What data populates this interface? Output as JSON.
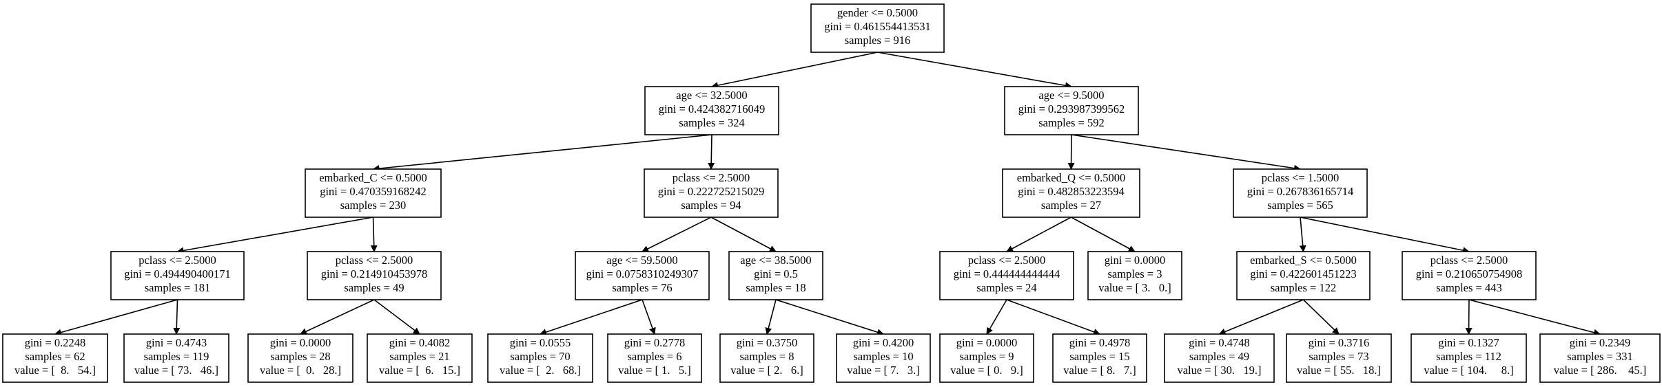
{
  "nodes": {
    "n0": {
      "lines": [
        "gender <= 0.5000",
        "gini = 0.461554413531",
        "samples = 916"
      ]
    },
    "n1": {
      "lines": [
        "age <= 32.5000",
        "gini = 0.424382716049",
        "samples = 324"
      ]
    },
    "n2": {
      "lines": [
        "age <= 9.5000",
        "gini = 0.293987399562",
        "samples = 592"
      ]
    },
    "n3": {
      "lines": [
        "embarked_C <= 0.5000",
        "gini = 0.470359168242",
        "samples = 230"
      ]
    },
    "n4": {
      "lines": [
        "pclass <= 2.5000",
        "gini = 0.222725215029",
        "samples = 94"
      ]
    },
    "n5": {
      "lines": [
        "embarked_Q <= 0.5000",
        "gini = 0.482853223594",
        "samples = 27"
      ]
    },
    "n6": {
      "lines": [
        "pclass <= 1.5000",
        "gini = 0.267836165714",
        "samples = 565"
      ]
    },
    "n7": {
      "lines": [
        "pclass <= 2.5000",
        "gini = 0.494490400171",
        "samples = 181"
      ]
    },
    "n8": {
      "lines": [
        "pclass <= 2.5000",
        "gini = 0.214910453978",
        "samples = 49"
      ]
    },
    "n9": {
      "lines": [
        "age <= 59.5000",
        "gini = 0.0758310249307",
        "samples = 76"
      ]
    },
    "n10": {
      "lines": [
        "age <= 38.5000",
        "gini = 0.5",
        "samples = 18"
      ]
    },
    "n11": {
      "lines": [
        "pclass <= 2.5000",
        "gini = 0.444444444444",
        "samples = 24"
      ]
    },
    "n12": {
      "lines": [
        "gini = 0.0000",
        "samples = 3",
        "value = [ 3.   0.]"
      ]
    },
    "n13": {
      "lines": [
        "embarked_S <= 0.5000",
        "gini = 0.422601451223",
        "samples = 122"
      ]
    },
    "n14": {
      "lines": [
        "pclass <= 2.5000",
        "gini = 0.210650754908",
        "samples = 443"
      ]
    },
    "n15": {
      "lines": [
        "gini = 0.2248",
        "samples = 62",
        "value = [  8.   54.]"
      ]
    },
    "n16": {
      "lines": [
        "gini = 0.4743",
        "samples = 119",
        "value = [ 73.   46.]"
      ]
    },
    "n17": {
      "lines": [
        "gini = 0.0000",
        "samples = 28",
        "value = [  0.   28.]"
      ]
    },
    "n18": {
      "lines": [
        "gini = 0.4082",
        "samples = 21",
        "value = [  6.   15.]"
      ]
    },
    "n19": {
      "lines": [
        "gini = 0.0555",
        "samples = 70",
        "value = [  2.   68.]"
      ]
    },
    "n20": {
      "lines": [
        "gini = 0.2778",
        "samples = 6",
        "value = [ 1.   5.]"
      ]
    },
    "n21": {
      "lines": [
        "gini = 0.3750",
        "samples = 8",
        "value = [ 2.   6.]"
      ]
    },
    "n22": {
      "lines": [
        "gini = 0.4200",
        "samples = 10",
        "value = [ 7.   3.]"
      ]
    },
    "n23": {
      "lines": [
        "gini = 0.0000",
        "samples = 9",
        "value = [ 0.   9.]"
      ]
    },
    "n24": {
      "lines": [
        "gini = 0.4978",
        "samples = 15",
        "value = [ 8.   7.]"
      ]
    },
    "n25": {
      "lines": [
        "gini = 0.4748",
        "samples = 49",
        "value = [ 30.   19.]"
      ]
    },
    "n26": {
      "lines": [
        "gini = 0.3716",
        "samples = 73",
        "value = [ 55.   18.]"
      ]
    },
    "n27": {
      "lines": [
        "gini = 0.1327",
        "samples = 112",
        "value = [ 104.     8.]"
      ]
    },
    "n28": {
      "lines": [
        "gini = 0.2349",
        "samples = 331",
        "value = [ 286.    45.]"
      ]
    }
  },
  "edges": [
    [
      "n0",
      "n1"
    ],
    [
      "n0",
      "n2"
    ],
    [
      "n1",
      "n3"
    ],
    [
      "n1",
      "n4"
    ],
    [
      "n2",
      "n5"
    ],
    [
      "n2",
      "n6"
    ],
    [
      "n3",
      "n7"
    ],
    [
      "n3",
      "n8"
    ],
    [
      "n4",
      "n9"
    ],
    [
      "n4",
      "n10"
    ],
    [
      "n5",
      "n11"
    ],
    [
      "n5",
      "n12"
    ],
    [
      "n6",
      "n13"
    ],
    [
      "n6",
      "n14"
    ],
    [
      "n7",
      "n15"
    ],
    [
      "n7",
      "n16"
    ],
    [
      "n8",
      "n17"
    ],
    [
      "n8",
      "n18"
    ],
    [
      "n9",
      "n19"
    ],
    [
      "n9",
      "n20"
    ],
    [
      "n10",
      "n21"
    ],
    [
      "n10",
      "n22"
    ],
    [
      "n11",
      "n23"
    ],
    [
      "n11",
      "n24"
    ],
    [
      "n13",
      "n25"
    ],
    [
      "n13",
      "n26"
    ],
    [
      "n14",
      "n27"
    ],
    [
      "n14",
      "n28"
    ]
  ]
}
